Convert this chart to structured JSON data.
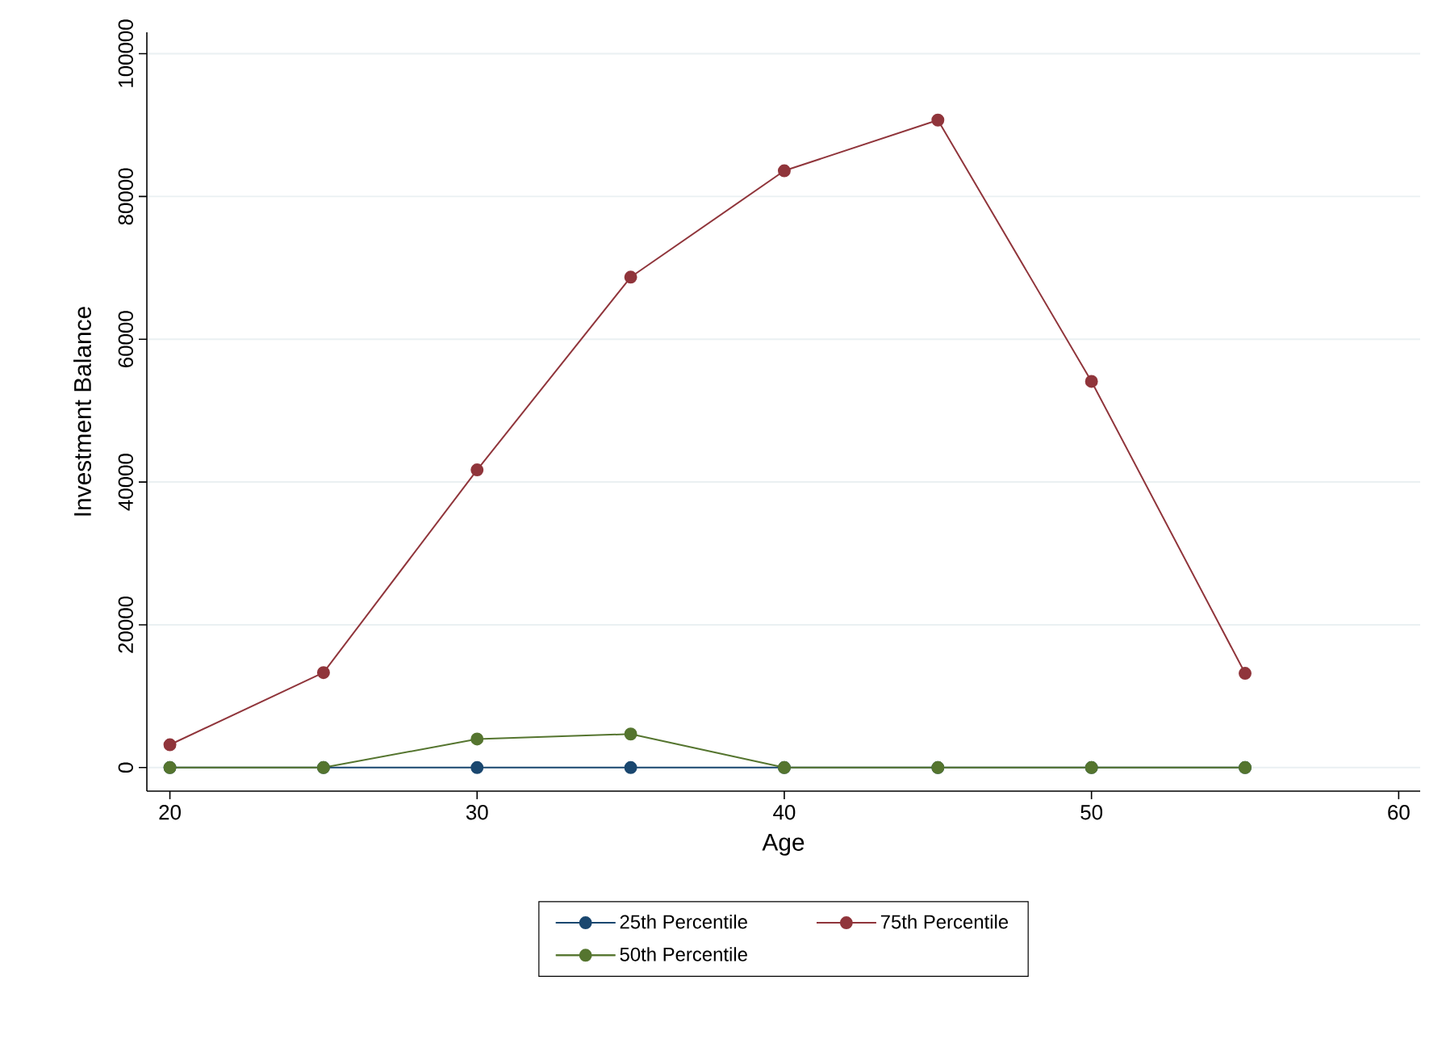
{
  "chart_data": {
    "type": "line",
    "xlabel": "Age",
    "ylabel": "Investment Balance",
    "x": [
      20,
      25,
      30,
      35,
      40,
      45,
      50,
      55
    ],
    "series": [
      {
        "name": "25th Percentile",
        "color": "#1a476f",
        "values": [
          0,
          0,
          0,
          0,
          0,
          0,
          0,
          0
        ]
      },
      {
        "name": "75th Percentile",
        "color": "#90353b",
        "values": [
          3200,
          13300,
          41700,
          68700,
          83600,
          90700,
          54100,
          13200
        ]
      },
      {
        "name": "50th Percentile",
        "color": "#55752f",
        "values": [
          0,
          0,
          4000,
          4700,
          0,
          0,
          0,
          0
        ]
      }
    ],
    "xlim": [
      19.25,
      60.7
    ],
    "ylim": [
      -3300,
      103000
    ],
    "xticks": [
      20,
      30,
      40,
      50,
      60
    ],
    "yticks": [
      0,
      20000,
      40000,
      60000,
      80000,
      100000
    ],
    "grid": "y",
    "legend": "bottom",
    "marker": "circle",
    "line_style": "solid"
  }
}
